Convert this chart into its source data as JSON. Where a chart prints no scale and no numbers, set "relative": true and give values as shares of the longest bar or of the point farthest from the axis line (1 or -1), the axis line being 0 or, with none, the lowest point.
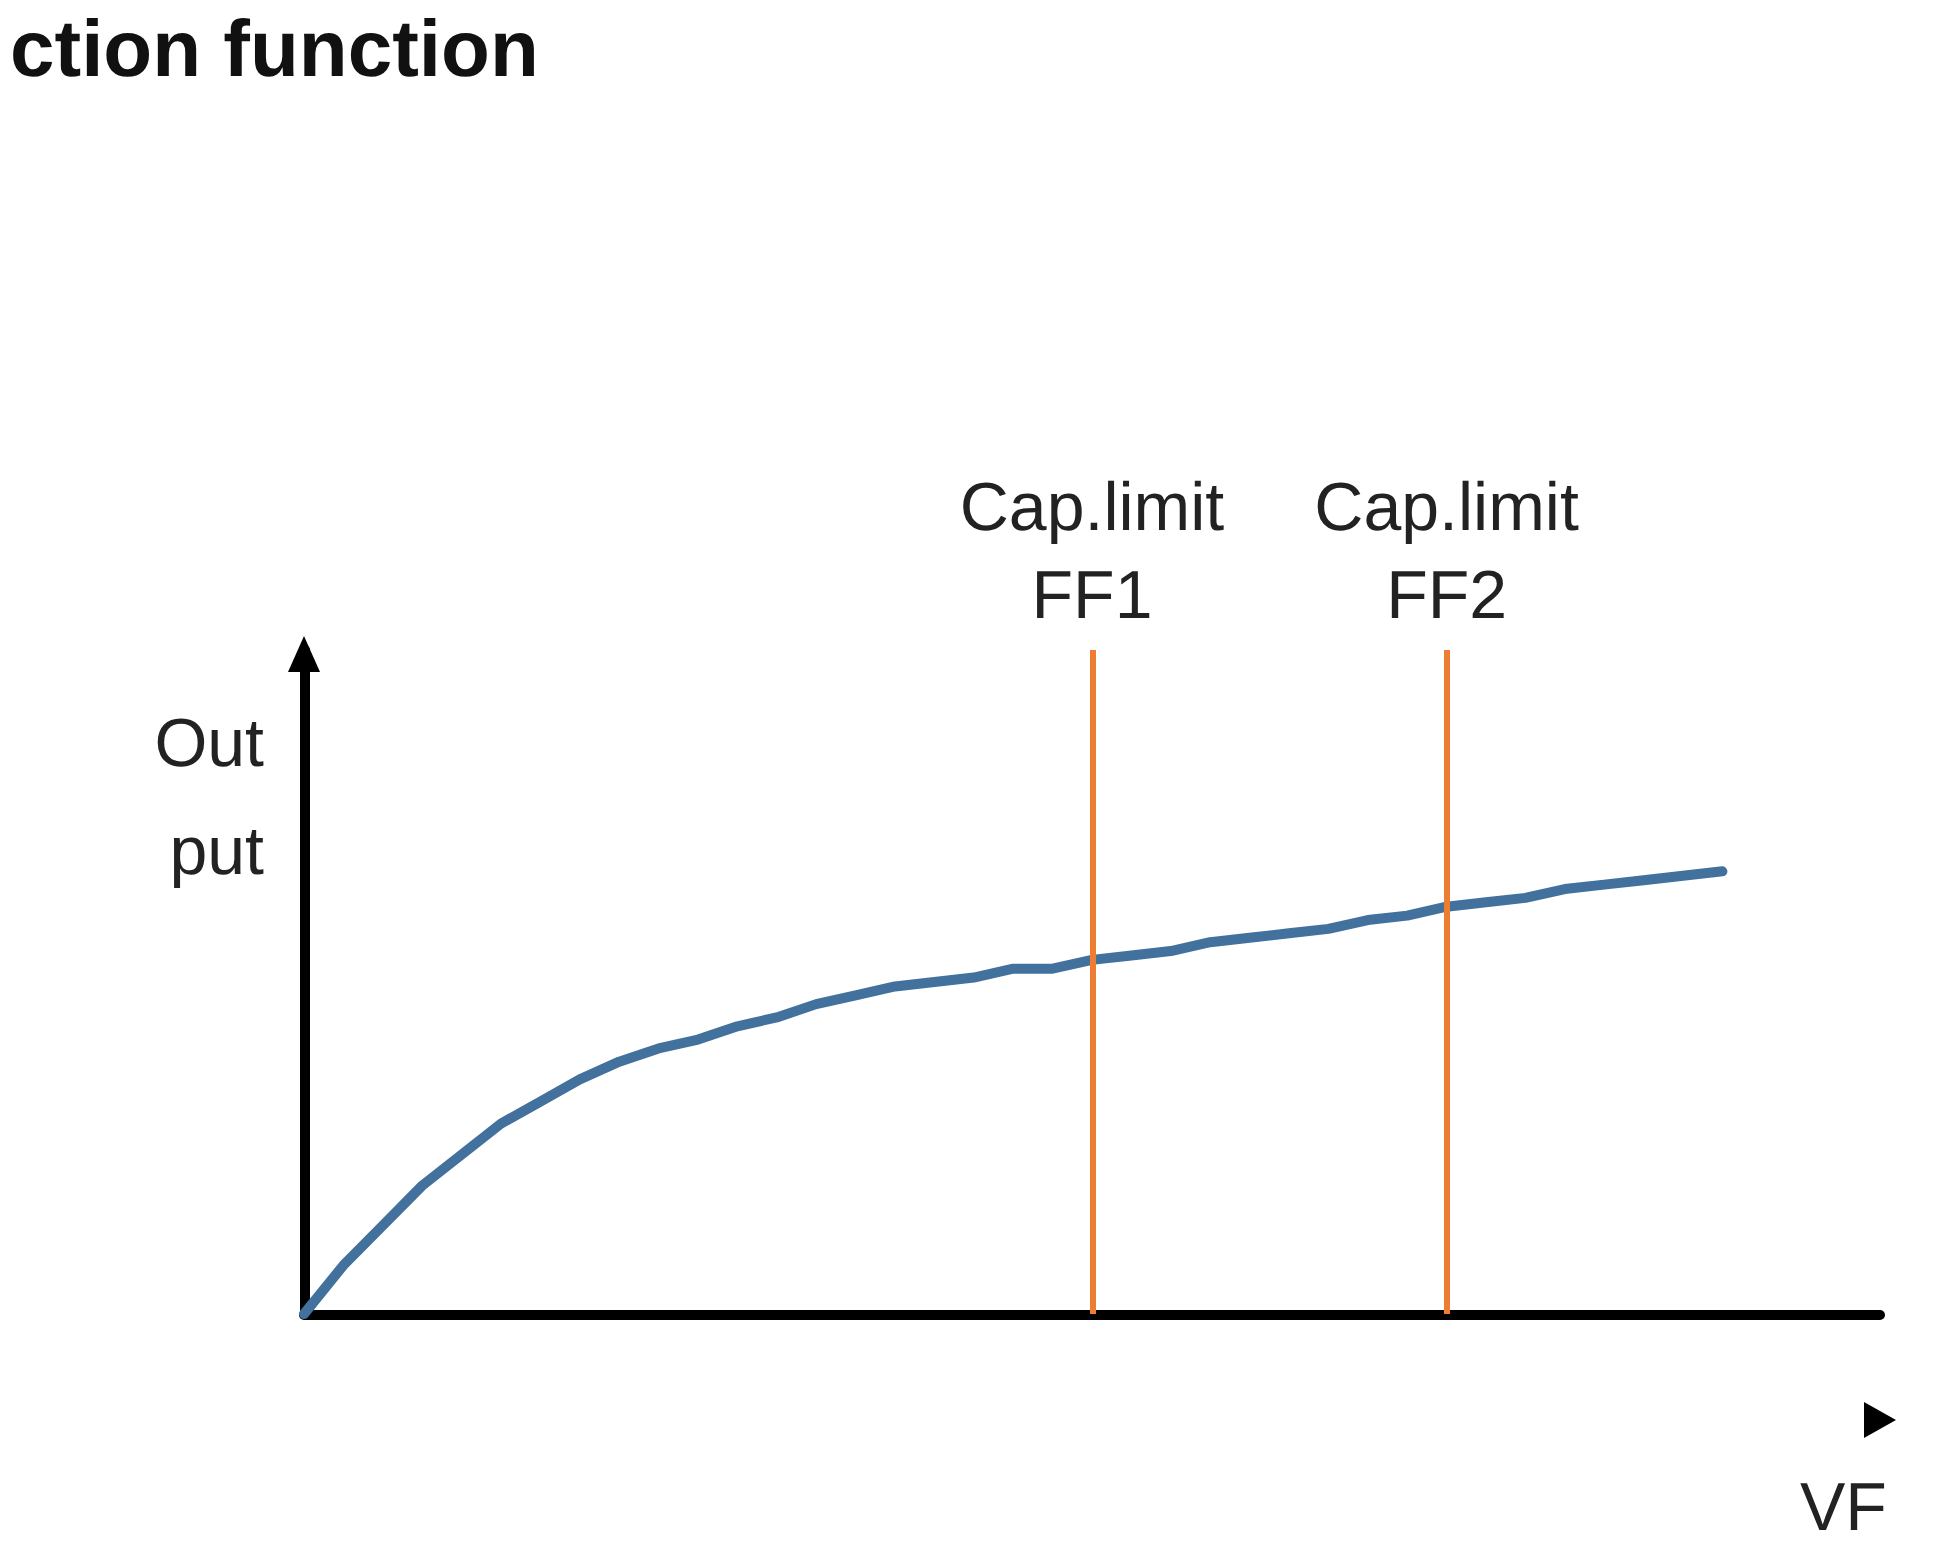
{
  "chart_data": {
    "type": "line",
    "title": "ction function",
    "xlabel": "VF",
    "ylabel": "Out\nput",
    "relative": true,
    "grid": false,
    "marker": "none",
    "line_style": "solid",
    "categories": [
      null,
      null,
      null,
      null,
      null,
      null,
      null,
      null,
      null,
      null,
      null,
      null,
      null,
      null,
      null,
      null,
      null,
      null,
      null,
      null,
      null,
      null,
      null,
      null,
      null,
      null,
      null,
      null,
      null,
      null,
      null,
      null,
      null,
      null,
      null,
      null,
      null,
      null,
      null,
      null,
      null
    ],
    "series": [
      {
        "color": "#41719c",
        "values": [
          0,
          0.11,
          0.2,
          0.29,
          0.36,
          0.43,
          0.48,
          0.53,
          0.57,
          0.6,
          0.62,
          0.65,
          0.67,
          0.7,
          0.72,
          0.74,
          0.75,
          0.76,
          0.78,
          0.78,
          0.8,
          0.81,
          0.82,
          0.84,
          0.85,
          0.86,
          0.87,
          0.89,
          0.9,
          0.92,
          0.93,
          0.94,
          0.96,
          0.97,
          0.98,
          0.99,
          1,
          null,
          null,
          null,
          null
        ]
      }
    ],
    "ref_lines": [
      {
        "axis": "x",
        "label": "Cap.limit\nFF1",
        "color": "#ed7d31"
      },
      {
        "axis": "x",
        "label": "Cap.limit\nFF2",
        "color": "#ed7d31"
      }
    ]
  }
}
